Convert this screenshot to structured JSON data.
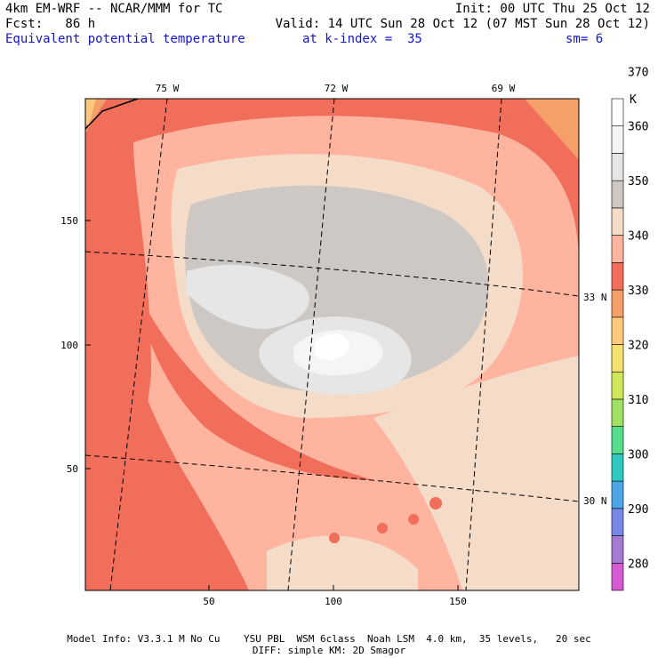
{
  "header": {
    "model_line": "4km EM-WRF -- NCAR/MMM for TC",
    "init_line": "Init: 00 UTC Thu 25 Oct 12",
    "fcst_line": "Fcst:   86 h",
    "valid_line": "Valid: 14 UTC Sun 28 Oct 12 (07 MST Sun 28 Oct 12)",
    "field_name": "Equivalent potential temperature",
    "k_index": "at k-index =  35",
    "smoothing": "sm= 6"
  },
  "footer": {
    "line1": "Model Info: V3.3.1 M No Cu    YSU PBL  WSM 6class  Noah LSM  4.0 km,  35 levels,   20 sec",
    "line2": "DIFF: simple KM: 2D Smagor"
  },
  "chart_data": {
    "type": "heatmap",
    "title": "Equivalent potential temperature",
    "xlabel": "",
    "ylabel": "",
    "xlim": [
      1,
      199
    ],
    "ylim": [
      1,
      199
    ],
    "x_ticks": [
      "50",
      "100",
      "150"
    ],
    "y_ticks": [
      "50",
      "100",
      "150"
    ],
    "lon_labels": [
      "75 W",
      "72 W",
      "69 W"
    ],
    "lat_labels": [
      "33 N",
      "30 N"
    ],
    "colorbar": {
      "unit": "K",
      "labels": [
        "280",
        "290",
        "300",
        "310",
        "320",
        "330",
        "340",
        "350",
        "360",
        "370"
      ],
      "colors": [
        "#d75ad2",
        "#a57ad2",
        "#7887e6",
        "#4ba5e6",
        "#2dc8be",
        "#55dc8c",
        "#a0e164",
        "#d2e65a",
        "#f5e16e",
        "#ffc87d",
        "#f5a069",
        "#f06e5a",
        "#ffb4a0",
        "#f5dcc8",
        "#cdc8c3",
        "#e6e6e6",
        "#f5f5f5",
        "#ffffff"
      ]
    }
  }
}
